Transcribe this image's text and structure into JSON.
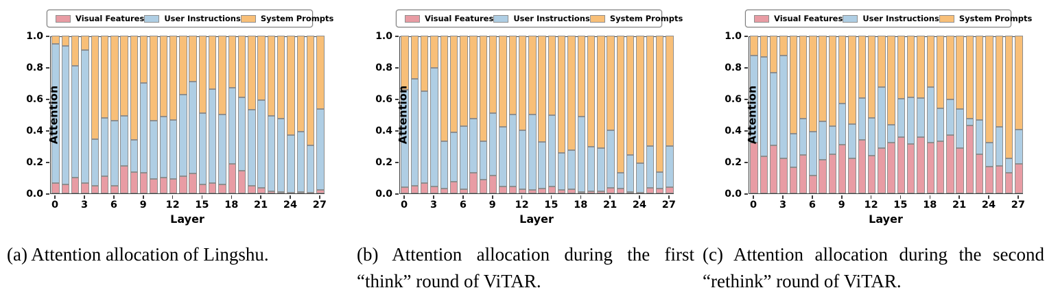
{
  "figure": {
    "type": "stacked-bar-figure",
    "background": "#ffffff"
  },
  "legend": {
    "items": [
      {
        "label": "Visual Features",
        "color": "#E89CA4"
      },
      {
        "label": "User Instructions",
        "color": "#AFCEE4"
      },
      {
        "label": "System Prompts",
        "color": "#F8BF78"
      }
    ]
  },
  "colors": {
    "visual": "#E89CA4",
    "user": "#AFCEE4",
    "system": "#F8BF78",
    "edge": "#8e8e8e",
    "spine": "#3a3a3a"
  },
  "chart_data": [
    {
      "type": "bar",
      "stacked": true,
      "title": "",
      "caption": "(a) Attention allocation of Lingshu.",
      "xlabel": "Layer",
      "ylabel": "Attention",
      "ylim": [
        0.0,
        1.0
      ],
      "yticks": [
        1.0,
        0.8,
        0.6,
        0.4,
        0.2,
        0.0
      ],
      "xticks": [
        0,
        3,
        6,
        9,
        12,
        15,
        18,
        21,
        24,
        27
      ],
      "x": [
        0,
        1,
        2,
        3,
        4,
        5,
        6,
        7,
        8,
        9,
        10,
        11,
        12,
        13,
        14,
        15,
        16,
        17,
        18,
        19,
        20,
        21,
        22,
        23,
        24,
        25,
        26,
        27
      ],
      "legend_position": "top",
      "grid": false,
      "series": [
        {
          "name": "Visual Features",
          "values": [
            0.065,
            0.055,
            0.1,
            0.065,
            0.05,
            0.11,
            0.05,
            0.175,
            0.135,
            0.13,
            0.09,
            0.1,
            0.09,
            0.11,
            0.125,
            0.055,
            0.065,
            0.055,
            0.185,
            0.145,
            0.05,
            0.035,
            0.015,
            0.01,
            0.005,
            0.01,
            0.005,
            0.02
          ]
        },
        {
          "name": "User Instructions",
          "values": [
            0.885,
            0.88,
            0.71,
            0.845,
            0.295,
            0.37,
            0.41,
            0.315,
            0.205,
            0.57,
            0.37,
            0.385,
            0.375,
            0.515,
            0.585,
            0.455,
            0.595,
            0.445,
            0.485,
            0.465,
            0.48,
            0.555,
            0.475,
            0.465,
            0.365,
            0.38,
            0.3,
            0.515
          ]
        },
        {
          "name": "System Prompts",
          "values": [
            0.05,
            0.065,
            0.19,
            0.09,
            0.655,
            0.52,
            0.54,
            0.51,
            0.66,
            0.3,
            0.54,
            0.515,
            0.535,
            0.375,
            0.29,
            0.49,
            0.34,
            0.5,
            0.33,
            0.39,
            0.47,
            0.41,
            0.51,
            0.525,
            0.63,
            0.61,
            0.695,
            0.465
          ]
        }
      ]
    },
    {
      "type": "bar",
      "stacked": true,
      "title": "",
      "caption": "(b) Attention allocation during the first “think” round of ViTAR.",
      "xlabel": "Layer",
      "ylabel": "Attention",
      "ylim": [
        0.0,
        1.0
      ],
      "yticks": [
        1.0,
        0.8,
        0.6,
        0.4,
        0.2,
        0.0
      ],
      "xticks": [
        0,
        3,
        6,
        9,
        12,
        15,
        18,
        21,
        24,
        27
      ],
      "x": [
        0,
        1,
        2,
        3,
        4,
        5,
        6,
        7,
        8,
        9,
        10,
        11,
        12,
        13,
        14,
        15,
        16,
        17,
        18,
        19,
        20,
        21,
        22,
        23,
        24,
        25,
        26,
        27
      ],
      "legend_position": "top",
      "grid": false,
      "series": [
        {
          "name": "Visual Features",
          "values": [
            0.04,
            0.05,
            0.065,
            0.045,
            0.03,
            0.075,
            0.025,
            0.13,
            0.085,
            0.115,
            0.045,
            0.045,
            0.025,
            0.02,
            0.03,
            0.045,
            0.02,
            0.025,
            0.01,
            0.015,
            0.015,
            0.035,
            0.03,
            0.01,
            0.005,
            0.035,
            0.03,
            0.04
          ]
        },
        {
          "name": "User Instructions",
          "values": [
            0.615,
            0.675,
            0.585,
            0.75,
            0.3,
            0.31,
            0.4,
            0.345,
            0.245,
            0.395,
            0.375,
            0.455,
            0.375,
            0.48,
            0.295,
            0.45,
            0.235,
            0.25,
            0.475,
            0.28,
            0.27,
            0.365,
            0.1,
            0.235,
            0.185,
            0.265,
            0.105,
            0.26
          ]
        },
        {
          "name": "System Prompts",
          "values": [
            0.345,
            0.275,
            0.35,
            0.205,
            0.67,
            0.615,
            0.575,
            0.525,
            0.67,
            0.49,
            0.58,
            0.5,
            0.6,
            0.5,
            0.675,
            0.505,
            0.745,
            0.725,
            0.515,
            0.705,
            0.715,
            0.6,
            0.87,
            0.755,
            0.81,
            0.7,
            0.865,
            0.7
          ]
        }
      ]
    },
    {
      "type": "bar",
      "stacked": true,
      "title": "",
      "caption": "(c) Attention allocation during the second “rethink” round of ViTAR.",
      "xlabel": "Layer",
      "ylabel": "Attention",
      "ylim": [
        0.0,
        1.0
      ],
      "yticks": [
        1.0,
        0.8,
        0.6,
        0.4,
        0.2,
        0.0
      ],
      "xticks": [
        0,
        3,
        6,
        9,
        12,
        15,
        18,
        21,
        24,
        27
      ],
      "x": [
        0,
        1,
        2,
        3,
        4,
        5,
        6,
        7,
        8,
        9,
        10,
        11,
        12,
        13,
        14,
        15,
        16,
        17,
        18,
        19,
        20,
        21,
        22,
        23,
        24,
        25,
        26,
        27
      ],
      "legend_position": "top",
      "grid": false,
      "series": [
        {
          "name": "Visual Features",
          "values": [
            0.32,
            0.235,
            0.305,
            0.22,
            0.165,
            0.245,
            0.115,
            0.215,
            0.25,
            0.31,
            0.22,
            0.34,
            0.24,
            0.285,
            0.32,
            0.355,
            0.315,
            0.355,
            0.32,
            0.33,
            0.37,
            0.285,
            0.43,
            0.25,
            0.17,
            0.175,
            0.13,
            0.185
          ]
        },
        {
          "name": "User Instructions",
          "values": [
            0.555,
            0.63,
            0.46,
            0.655,
            0.215,
            0.23,
            0.275,
            0.24,
            0.175,
            0.26,
            0.22,
            0.265,
            0.24,
            0.39,
            0.115,
            0.245,
            0.295,
            0.25,
            0.355,
            0.21,
            0.225,
            0.25,
            0.045,
            0.215,
            0.15,
            0.245,
            0.09,
            0.22
          ]
        },
        {
          "name": "System Prompts",
          "values": [
            0.125,
            0.135,
            0.235,
            0.125,
            0.62,
            0.525,
            0.61,
            0.545,
            0.575,
            0.43,
            0.56,
            0.395,
            0.52,
            0.325,
            0.565,
            0.4,
            0.39,
            0.395,
            0.325,
            0.46,
            0.405,
            0.465,
            0.525,
            0.535,
            0.68,
            0.58,
            0.78,
            0.595
          ]
        }
      ]
    }
  ]
}
